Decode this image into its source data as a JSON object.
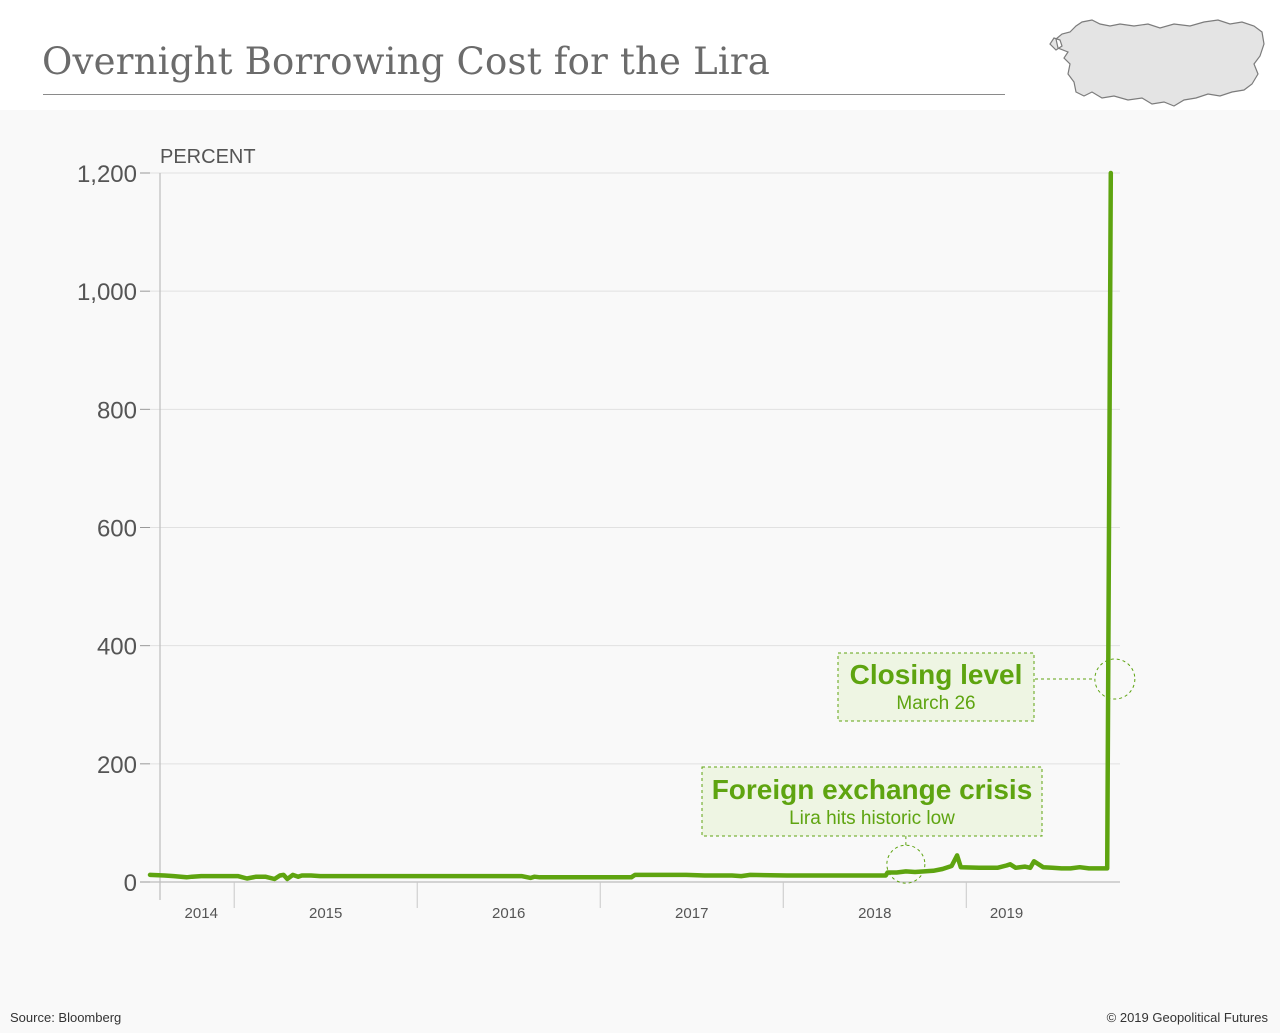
{
  "header": {
    "title": "Overnight Borrowing Cost for the Lira"
  },
  "map_icon": "turkey-map-icon",
  "colors": {
    "series": "#5ea410",
    "annotation_fill": "#eef5e3",
    "grid": "#e1e1e1",
    "axis": "#bdbdbd"
  },
  "chart_data": {
    "type": "line",
    "title": "Overnight Borrowing Cost for the Lira",
    "ylabel": "PERCENT",
    "xlabel": "",
    "ylim": [
      0,
      1200
    ],
    "yticks": [
      0,
      200,
      400,
      600,
      800,
      1000,
      1200
    ],
    "ytick_labels": [
      "0",
      "200",
      "400",
      "600",
      "800",
      "1,000",
      "1,200"
    ],
    "xlim": [
      2013.97,
      2019.27
    ],
    "xticks": [
      2014,
      2015,
      2016,
      2017,
      2018,
      2019
    ],
    "xtick_labels": [
      "2014",
      "2015",
      "2016",
      "2017",
      "2018",
      "2019"
    ],
    "grid": true,
    "series": [
      {
        "x": [
          2013.97,
          2014.05,
          2014.1,
          2014.17,
          2014.2,
          2014.25,
          2014.35,
          2014.45,
          2014.5,
          2014.55,
          2014.6,
          2014.65,
          2014.68,
          2014.7,
          2014.72,
          2014.75,
          2014.78,
          2014.8,
          2014.85,
          2014.9,
          2015.0,
          2015.5,
          2016.0,
          2016.05,
          2016.07,
          2016.1,
          2016.3,
          2016.5,
          2016.6,
          2016.62,
          2016.7,
          2016.9,
          2017.0,
          2017.15,
          2017.2,
          2017.25,
          2017.45,
          2017.6,
          2017.8,
          2017.99,
          2018.0,
          2018.05,
          2018.1,
          2018.15,
          2018.2,
          2018.25,
          2018.3,
          2018.35,
          2018.38,
          2018.4,
          2018.5,
          2018.6,
          2018.65,
          2018.67,
          2018.7,
          2018.75,
          2018.78,
          2018.8,
          2018.85,
          2018.9,
          2018.95,
          2018.98,
          2019.0,
          2019.05,
          2019.1,
          2019.12,
          2019.13,
          2019.2,
          2019.21,
          2019.22
        ],
        "y": [
          12,
          11,
          10,
          8,
          9,
          10,
          10,
          10,
          6,
          9,
          9,
          5,
          11,
          12,
          5,
          12,
          9,
          11,
          11,
          10,
          10,
          10,
          10,
          7,
          9,
          8,
          8,
          8,
          8,
          12,
          12,
          12,
          11,
          11,
          10,
          12,
          11,
          11,
          11,
          11,
          16,
          16,
          18,
          17,
          18,
          19,
          22,
          27,
          45,
          25,
          24,
          24,
          28,
          30,
          24,
          26,
          24,
          35,
          25,
          24,
          23,
          23,
          23,
          25,
          23,
          23,
          23,
          23,
          600,
          1200
        ]
      }
    ],
    "annotations": [
      {
        "title": "Foreign exchange crisis",
        "subtitle": "Lira hits historic low",
        "x": 2018.1,
        "y": 20
      },
      {
        "title": "Closing level",
        "subtitle": "March 26",
        "x": 2019.22,
        "y": 330
      }
    ]
  },
  "footer": {
    "source": "Source: Bloomberg",
    "copyright": "© 2019 Geopolitical Futures"
  }
}
